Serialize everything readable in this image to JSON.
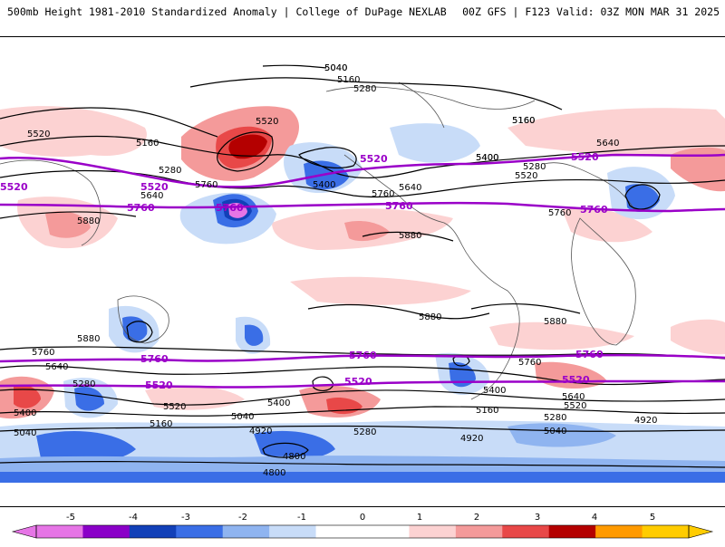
{
  "header": {
    "left": "500mb Height 1981-2010 Standardized Anomaly | College of DuPage NEXLAB",
    "right": "00Z GFS | F123 Valid: 03Z MON MAR 31 2025"
  },
  "contour_labels_black": [
    "5040",
    "5160",
    "5280",
    "5520",
    "5160",
    "5280",
    "5640",
    "5760",
    "5400",
    "5160",
    "5520",
    "5400",
    "5640",
    "5760",
    "5880",
    "5640",
    "5520",
    "5400",
    "5280",
    "5160",
    "5040",
    "5880",
    "5880",
    "5760",
    "5880",
    "5880",
    "5760",
    "5640",
    "5280",
    "5400",
    "5040",
    "5520",
    "5160",
    "5400",
    "5040",
    "4920",
    "4800",
    "5160",
    "5400",
    "5280",
    "4920",
    "5640",
    "5520",
    "5280",
    "5040",
    "4920",
    "4800",
    "5760"
  ],
  "contour_labels_purple": [
    "5520",
    "5760",
    "5520",
    "5760",
    "5520",
    "5760",
    "5760",
    "5760",
    "5760",
    "5520",
    "5520",
    "5520",
    "5760",
    "5520"
  ],
  "colorbar": {
    "ticks": [
      "-5",
      "-4",
      "-3",
      "-2",
      "-1",
      "0",
      "1",
      "2",
      "3",
      "4",
      "5"
    ],
    "colors": [
      "#e675e6",
      "#8a00c8",
      "#1240b8",
      "#3a6ee6",
      "#8fb4f0",
      "#c8dcf8",
      "#ffffff",
      "#ffffff",
      "#fcd2d2",
      "#f49a9a",
      "#e84848",
      "#b40000",
      "#ff9a00",
      "#ffcc00"
    ]
  }
}
